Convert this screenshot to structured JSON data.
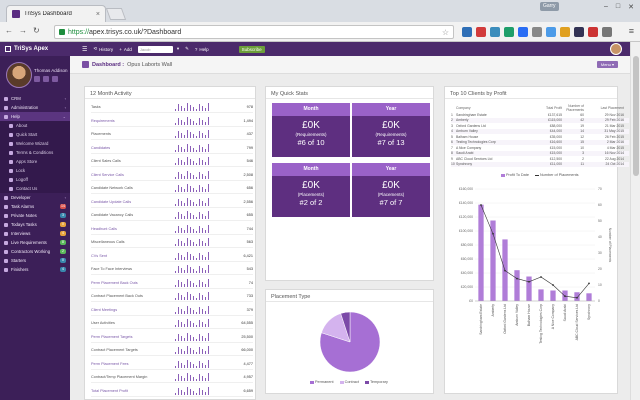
{
  "browser": {
    "tab_title": "TriSys Dashboard",
    "url_scheme": "https://",
    "url_rest": "apex.trisys.co.uk/?Dashboard",
    "user_chip": "Garry"
  },
  "topnav": {
    "brand": "TriSys Apex",
    "history": "History",
    "add": "Add",
    "search_placeholder": "Jacob",
    "help": "Help",
    "subscribe": "Subscribe"
  },
  "profile": {
    "name": "Thomas Addison"
  },
  "sidebar": {
    "items": [
      {
        "label": "CRM",
        "type": "main",
        "caret": "‹"
      },
      {
        "label": "Administration",
        "type": "main",
        "caret": "‹"
      },
      {
        "label": "Help",
        "type": "main",
        "caret": "⌄"
      },
      {
        "label": "About",
        "type": "sub"
      },
      {
        "label": "Quick Start",
        "type": "sub"
      },
      {
        "label": "Welcome Wizard",
        "type": "sub"
      },
      {
        "label": "Terms & Conditions",
        "type": "sub"
      },
      {
        "label": "Apps Store",
        "type": "sub"
      },
      {
        "label": "Lock",
        "type": "sub"
      },
      {
        "label": "Logoff",
        "type": "sub"
      },
      {
        "label": "Contact Us",
        "type": "sub"
      },
      {
        "label": "Developer",
        "type": "main",
        "caret": "‹"
      },
      {
        "label": "Task Alarms",
        "type": "main",
        "badge": "14",
        "badge_color": "#d9534f"
      },
      {
        "label": "Private Notes",
        "type": "main",
        "badge": "3",
        "badge_color": "#3a87ad"
      },
      {
        "label": "Todays Tasks",
        "type": "main",
        "badge": "0",
        "badge_color": "#e8a33c"
      },
      {
        "label": "Interviews",
        "type": "main",
        "badge": "4",
        "badge_color": "#e8a33c"
      },
      {
        "label": "Live Requirements",
        "type": "main",
        "badge": "8",
        "badge_color": "#5cb85c"
      },
      {
        "label": "Contractors Working",
        "type": "main",
        "badge": "2",
        "badge_color": "#5cb85c"
      },
      {
        "label": "Starters",
        "type": "main",
        "badge": "0",
        "badge_color": "#3a87ad"
      },
      {
        "label": "Finishers",
        "type": "main",
        "badge": "4",
        "badge_color": "#3a87ad"
      }
    ]
  },
  "page": {
    "title": "Dashboard :",
    "subtitle": "Opus Laborts Wall",
    "menu": "Menu ▾"
  },
  "activity": {
    "title": "12 Month Activity",
    "rows": [
      {
        "label": "Tasks",
        "value": "978",
        "link": false
      },
      {
        "label": "Requirements",
        "value": "1,494",
        "link": true
      },
      {
        "label": "Placements",
        "value": "437",
        "link": false
      },
      {
        "label": "Candidates",
        "value": "799",
        "link": true
      },
      {
        "label": "Client Sales Calls",
        "value": "546",
        "link": false
      },
      {
        "label": "Client Service Calls",
        "value": "2,508",
        "link": true
      },
      {
        "label": "Candidate Network Calls",
        "value": "656",
        "link": false
      },
      {
        "label": "Candidate Update Calls",
        "value": "2,556",
        "link": true
      },
      {
        "label": "Candidate Vacancy Calls",
        "value": "655",
        "link": false
      },
      {
        "label": "Headhunt Calls",
        "value": "744",
        "link": true
      },
      {
        "label": "Miscellaneous Calls",
        "value": "563",
        "link": false
      },
      {
        "label": "CVs Sent",
        "value": "6,421",
        "link": true
      },
      {
        "label": "Face To Face Interviews",
        "value": "543",
        "link": false
      },
      {
        "label": "Perm Placement Back Outs",
        "value": "74",
        "link": true
      },
      {
        "label": "Contract Placement Back Outs",
        "value": "733",
        "link": false
      },
      {
        "label": "Client Meetings",
        "value": "379",
        "link": true
      },
      {
        "label": "User Activities",
        "value": "64,555",
        "link": false
      },
      {
        "label": "Perm Placement Targets",
        "value": "25,500",
        "link": true
      },
      {
        "label": "Contract Placement Targets",
        "value": "66,000",
        "link": false
      },
      {
        "label": "Perm Placement Fees",
        "value": "4,477",
        "link": true
      },
      {
        "label": "Contract/Temp Placement Margin",
        "value": "4,957",
        "link": false
      },
      {
        "label": "Total Placement Profit",
        "value": "6,659",
        "link": true
      }
    ]
  },
  "quick_stats": {
    "title": "My Quick Stats",
    "boxes": [
      {
        "head": "Month",
        "amount": "£0K",
        "label": "(Requirements)",
        "rank": "#6 of 10"
      },
      {
        "head": "Year",
        "amount": "£0K",
        "label": "(Requirements)",
        "rank": "#7 of 13"
      },
      {
        "head": "Month",
        "amount": "£0K",
        "label": "(Placements)",
        "rank": "#2 of 2"
      },
      {
        "head": "Year",
        "amount": "£0K",
        "label": "(Placements)",
        "rank": "#7 of 7"
      }
    ]
  },
  "placement_type": {
    "title": "Placement Type",
    "legend": [
      "Permanent",
      "Contract",
      "Temporary"
    ],
    "slices": [
      {
        "name": "Permanent",
        "value": 80,
        "color": "#a66fd4"
      },
      {
        "name": "Contract",
        "value": 15,
        "color": "#d4b3ee"
      },
      {
        "name": "Temporary",
        "value": 5,
        "color": "#7c4aa8"
      }
    ]
  },
  "top_clients": {
    "title": "Top 10 Clients by Profit",
    "headers": {
      "company": "Company",
      "fee": "Total Profit",
      "placements": "Number of Placements",
      "date": "Last Placement"
    },
    "rows": [
      {
        "n": "1",
        "company": "Sandringham Estate",
        "fee": "£137,615",
        "plc": "60",
        "date": "29 Nov 2016"
      },
      {
        "n": "2",
        "company": "Amberly",
        "fee": "£115,000",
        "plc": "42",
        "date": "29 Feb 2016"
      },
      {
        "n": "3",
        "company": "Oxford Gardens Ltd",
        "fee": "£88,000",
        "plc": "19",
        "date": "21 Mar 2015"
      },
      {
        "n": "4",
        "company": "Amburn Valley",
        "fee": "£44,000",
        "plc": "14",
        "date": "31 May 2015"
      },
      {
        "n": "5",
        "company": "Balham House",
        "fee": "£35,000",
        "plc": "12",
        "date": "26 Feb 2015"
      },
      {
        "n": "6",
        "company": "Testing Technologies Corp",
        "fee": "£16,600",
        "plc": "15",
        "date": "2 Mar 2016"
      },
      {
        "n": "7",
        "company": "A Nice Company",
        "fee": "£15,000",
        "plc": "10",
        "date": "4 Mar 2015"
      },
      {
        "n": "8",
        "company": "Saudi Arabi",
        "fee": "£15,000",
        "plc": "3",
        "date": "16 Nov 2014"
      },
      {
        "n": "9",
        "company": "ABC Cloud Services Ltd",
        "fee": "£12,500",
        "plc": "2",
        "date": "22 Aug 2014"
      },
      {
        "n": "10",
        "company": "Synchrony",
        "fee": "£11,000",
        "plc": "11",
        "date": "24 Oct 2014"
      }
    ],
    "legend": [
      "Profit To Date",
      "Number of Placements"
    ]
  },
  "chart_data": {
    "type": "bar",
    "title": "",
    "categories": [
      "Sandringham Estate",
      "Amberly",
      "Oxford Gardens Ltd",
      "Amburn Valley",
      "Balham House",
      "Testing Technologies Corp",
      "A Nice Company",
      "Saudi Arabi",
      "ABC Cloud Services Ltd",
      "Synchrony"
    ],
    "series": [
      {
        "name": "Profit To Date",
        "kind": "bar",
        "axis": "left",
        "color": "#b07dd8",
        "values": [
          137615,
          115000,
          88000,
          44000,
          35000,
          16600,
          15000,
          15000,
          12500,
          11000
        ]
      },
      {
        "name": "Number of Placements",
        "kind": "line",
        "axis": "right",
        "color": "#333333",
        "values": [
          60,
          42,
          19,
          14,
          12,
          15,
          10,
          3,
          2,
          11
        ]
      }
    ],
    "ylim": [
      0,
      160000
    ],
    "y2lim": [
      0,
      70
    ],
    "yticks": [
      "£0",
      "£20,000",
      "£40,000",
      "£60,000",
      "£80,000",
      "£100,000",
      "£120,000",
      "£140,000",
      "£160,000"
    ],
    "y2ticks": [
      "0",
      "10",
      "20",
      "30",
      "40",
      "50",
      "60",
      "70"
    ],
    "y2label": "Number of Placements",
    "grid": true,
    "legend": "top"
  }
}
